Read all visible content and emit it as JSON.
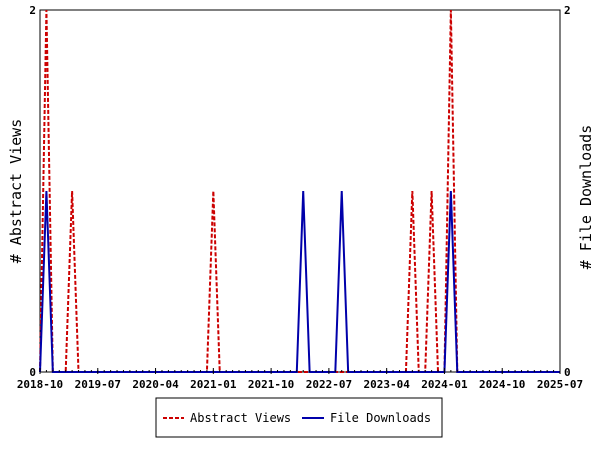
{
  "chart_data": {
    "type": "line",
    "ylabel_left": "# Abstract Views",
    "ylabel_right": "# File Downloads",
    "ylim": [
      0,
      2
    ],
    "y_ticks": [
      "0",
      "2"
    ],
    "x_range": [
      "2018-10",
      "2025-07"
    ],
    "x_ticks": [
      "2018-10",
      "2019-07",
      "2020-04",
      "2021-01",
      "2021-10",
      "2022-07",
      "2023-04",
      "2024-01",
      "2024-10",
      "2025-07"
    ],
    "legend_position": "bottom-center",
    "series": [
      {
        "name": "Abstract Views",
        "color": "#cc0000",
        "style": "dashed",
        "points": [
          [
            "2018-10",
            0
          ],
          [
            "2018-11",
            2
          ],
          [
            "2018-12",
            0
          ],
          [
            "2019-01",
            0
          ],
          [
            "2019-02",
            0
          ],
          [
            "2019-03",
            1
          ],
          [
            "2019-04",
            0
          ],
          [
            "2020-12",
            0
          ],
          [
            "2021-01",
            1
          ],
          [
            "2021-02",
            0
          ],
          [
            "2023-07",
            0
          ],
          [
            "2023-08",
            1
          ],
          [
            "2023-09",
            0
          ],
          [
            "2023-10",
            0
          ],
          [
            "2023-11",
            1
          ],
          [
            "2023-12",
            0
          ],
          [
            "2024-01",
            0
          ],
          [
            "2024-02",
            2
          ],
          [
            "2024-03",
            0
          ]
        ]
      },
      {
        "name": "File Downloads",
        "color": "#0000aa",
        "style": "solid",
        "points": [
          [
            "2018-10",
            0
          ],
          [
            "2018-11",
            1
          ],
          [
            "2018-12",
            0
          ],
          [
            "2022-02",
            0
          ],
          [
            "2022-03",
            1
          ],
          [
            "2022-04",
            0
          ],
          [
            "2022-08",
            0
          ],
          [
            "2022-09",
            1
          ],
          [
            "2022-10",
            0
          ],
          [
            "2024-01",
            0
          ],
          [
            "2024-02",
            1
          ],
          [
            "2024-03",
            0
          ],
          [
            "2025-07",
            0
          ]
        ]
      }
    ]
  }
}
